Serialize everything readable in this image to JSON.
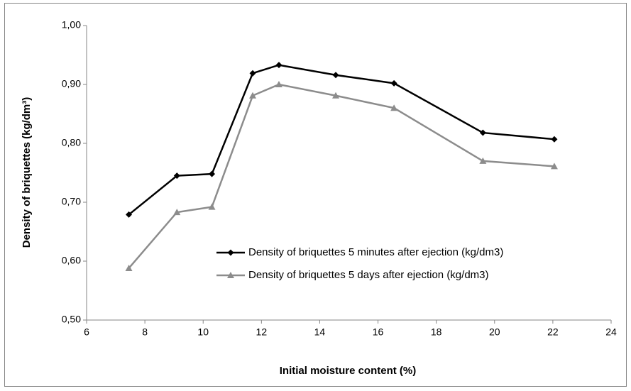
{
  "chart_data": {
    "type": "line",
    "xlabel": "Initial moisture content (%)",
    "ylabel": "Density of briquettes (kg/dm³)",
    "x": [
      7.45,
      9.1,
      10.3,
      11.7,
      12.6,
      14.55,
      16.55,
      19.6,
      22.05
    ],
    "series": [
      {
        "name": "Density of briquettes 5 minutes after ejection (kg/dm3)",
        "color": "#000000",
        "marker": "diamond",
        "values": [
          0.679,
          0.745,
          0.748,
          0.919,
          0.933,
          0.916,
          0.902,
          0.818,
          0.807
        ]
      },
      {
        "name": "Density of briquettes 5 days after ejection (kg/dm3)",
        "color": "#8c8c8c",
        "marker": "triangle",
        "values": [
          0.588,
          0.683,
          0.692,
          0.881,
          0.9,
          0.881,
          0.86,
          0.77,
          0.761
        ]
      }
    ],
    "xlim": [
      6,
      24
    ],
    "xticks": [
      6,
      8,
      10,
      12,
      14,
      16,
      18,
      20,
      22,
      24
    ],
    "ylim": [
      0.5,
      1.0
    ],
    "yticks": [
      {
        "value": 0.5,
        "label": "0,50"
      },
      {
        "value": 0.6,
        "label": "0,60"
      },
      {
        "value": 0.7,
        "label": "0,70"
      },
      {
        "value": 0.8,
        "label": "0,80"
      },
      {
        "value": 0.9,
        "label": "0,90"
      },
      {
        "value": 1.0,
        "label": "1,00"
      }
    ],
    "grid": false,
    "legend": "lower-center"
  }
}
